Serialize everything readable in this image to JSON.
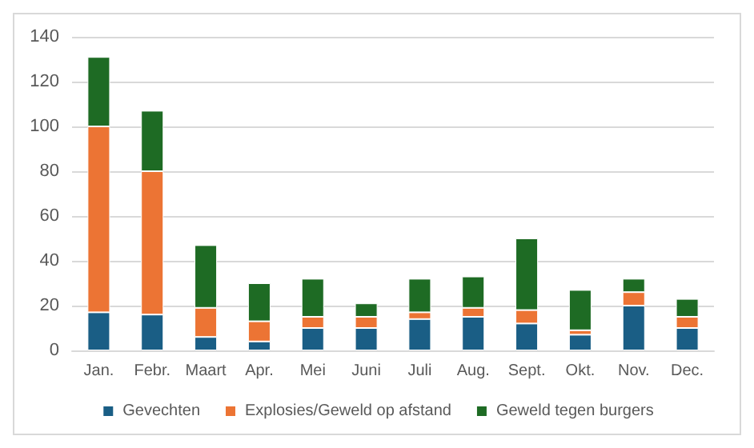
{
  "chart_data": {
    "type": "bar",
    "stacked": true,
    "categories": [
      "Jan.",
      "Febr.",
      "Maart",
      "Apr.",
      "Mei",
      "Juni",
      "Juli",
      "Aug.",
      "Sept.",
      "Okt.",
      "Nov.",
      "Dec."
    ],
    "series": [
      {
        "name": "Gevechten",
        "color": "#1a5e85",
        "values": [
          17,
          16,
          6,
          4,
          10,
          10,
          14,
          15,
          12,
          7,
          20,
          10
        ]
      },
      {
        "name": "Explosies/Geweld op afstand",
        "color": "#ec7434",
        "values": [
          83,
          64,
          13,
          9,
          5,
          5,
          3,
          4,
          6,
          2,
          6,
          5
        ]
      },
      {
        "name": "Geweld tegen burgers",
        "color": "#1e6b24",
        "values": [
          31,
          27,
          28,
          17,
          17,
          6,
          15,
          14,
          32,
          18,
          6,
          8
        ]
      }
    ],
    "ylim": [
      0,
      140
    ],
    "yticks": [
      0,
      20,
      40,
      60,
      80,
      100,
      120,
      140
    ],
    "grid": "y",
    "legend": "bottom"
  }
}
